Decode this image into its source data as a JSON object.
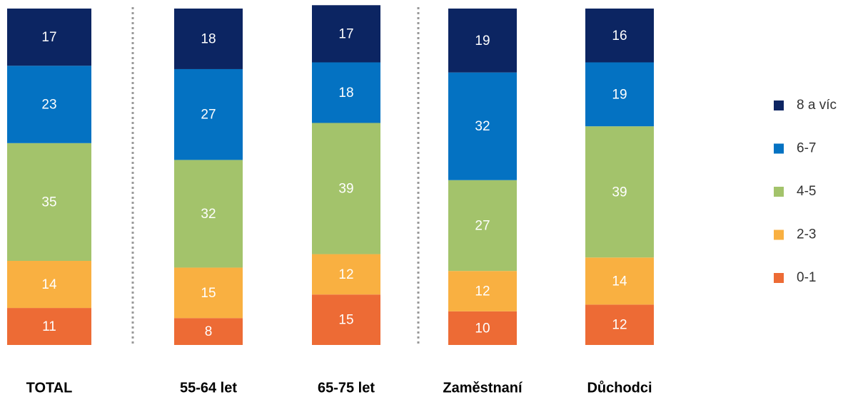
{
  "chart_data": {
    "type": "stacked_bar",
    "categories": [
      "TOTAL",
      "55-64 let",
      "65-75 let",
      "Zaměstnaní",
      "Důchodci"
    ],
    "series": [
      {
        "name": "0-1",
        "color": "#ed6b35",
        "values": [
          11,
          8,
          15,
          10,
          12
        ]
      },
      {
        "name": "2-3",
        "color": "#f9b041",
        "values": [
          14,
          15,
          12,
          12,
          14
        ]
      },
      {
        "name": "4-5",
        "color": "#a3c36b",
        "values": [
          35,
          32,
          39,
          27,
          39
        ]
      },
      {
        "name": "6-7",
        "color": "#0472c2",
        "values": [
          23,
          27,
          18,
          32,
          19
        ]
      },
      {
        "name": "8 a víc",
        "color": "#0c2562",
        "values": [
          17,
          18,
          17,
          19,
          16
        ]
      }
    ],
    "ylim": [
      0,
      100
    ]
  }
}
